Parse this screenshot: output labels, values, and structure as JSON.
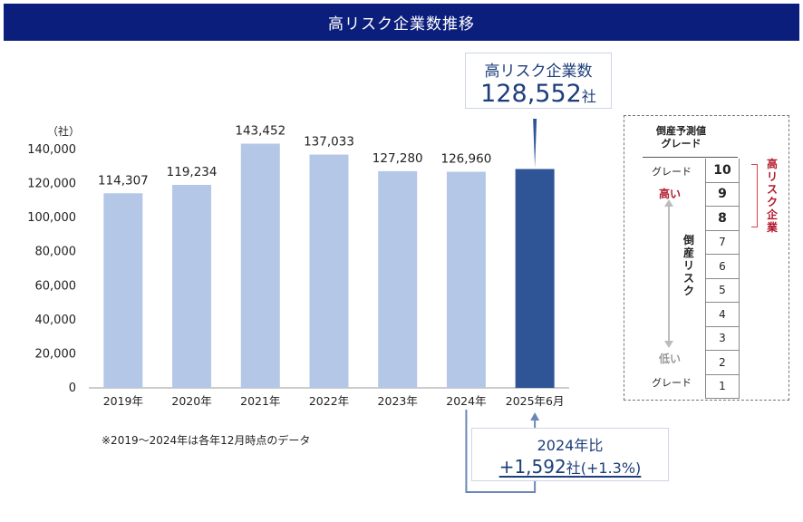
{
  "title": "高リスク企業数推移",
  "y_unit_label": "（社）",
  "callout": {
    "label": "高リスク企業数",
    "value": "128,552",
    "unit": "社"
  },
  "comparison": {
    "label": "2024年比",
    "change": "+1,592",
    "unit": "社",
    "pct": "(+1.3%)"
  },
  "note": "※2019～2024年は各年12月時点のデータ",
  "colors": {
    "title_bg": "#0c1e7c",
    "bar": "#b4c7e7",
    "bar_highlight": "#2f5597",
    "connector": "#6b86b8"
  },
  "chart_data": {
    "type": "bar",
    "categories": [
      "2019年",
      "2020年",
      "2021年",
      "2022年",
      "2023年",
      "2024年",
      "2025年6月"
    ],
    "values": [
      114307,
      119234,
      143452,
      137033,
      127280,
      126960,
      128552
    ],
    "data_labels": [
      "114,307",
      "119,234",
      "143,452",
      "137,033",
      "127,280",
      "126,960",
      ""
    ],
    "yticks": [
      "0",
      "20,000",
      "40,000",
      "60,000",
      "80,000",
      "100,000",
      "120,000",
      "140,000"
    ],
    "ylim": [
      0,
      140000
    ],
    "highlight_index": 6,
    "grid": false
  },
  "grade_panel": {
    "header_line1": "倒産予測値",
    "header_line2": "グレード",
    "grades": [
      "10",
      "9",
      "8",
      "7",
      "6",
      "5",
      "4",
      "3",
      "2",
      "1"
    ],
    "grade_label_top": "グレード",
    "grade_label_bottom": "グレード",
    "high_label": "高い",
    "low_label": "低い",
    "risk_label": "倒産リスク",
    "high_risk_label": "高リスク企業"
  }
}
